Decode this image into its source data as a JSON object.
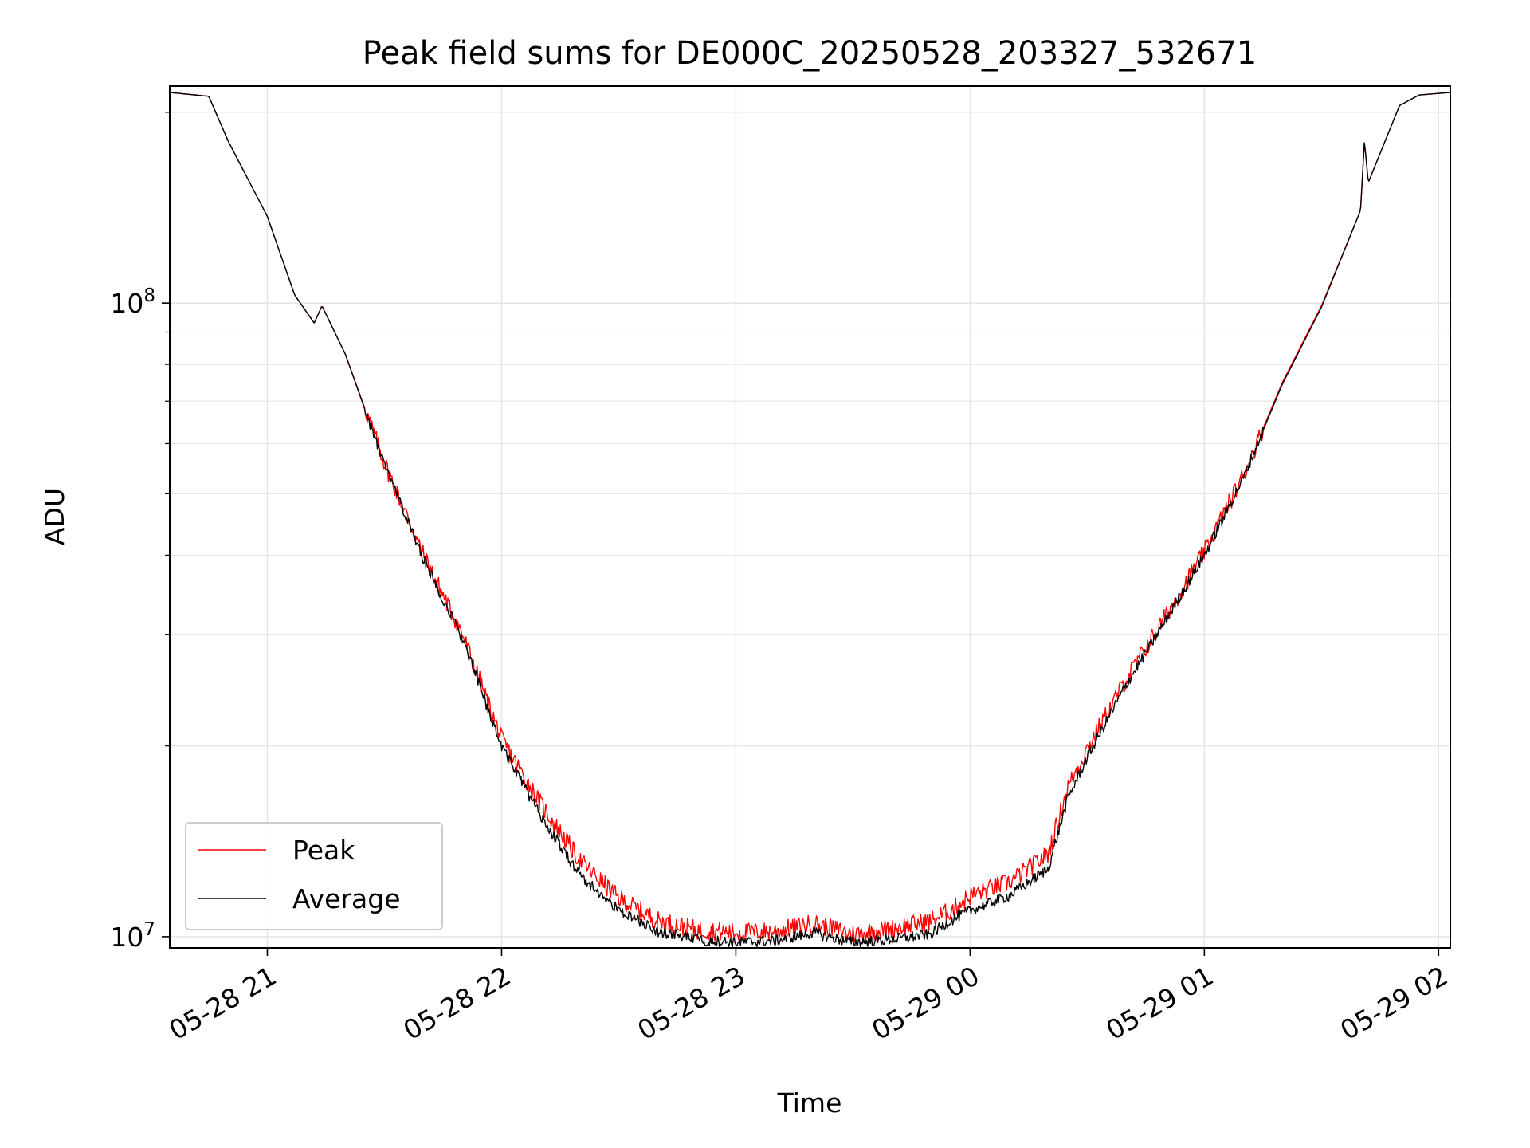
{
  "chart_data": {
    "type": "line",
    "title": "Peak field sums for DE000C_20250528_203327_532671",
    "xlabel": "Time",
    "ylabel": "ADU",
    "yscale": "log",
    "grid": true,
    "legend_position": "lower-left",
    "xlim": [
      "2025-05-28 20:35",
      "2025-05-29 02:03"
    ],
    "ylim": [
      9600000,
      220000000
    ],
    "x_ticks": [
      "05-28 21",
      "05-28 22",
      "05-28 23",
      "05-29 00",
      "05-29 01",
      "05-29 02"
    ],
    "y_tick_labels": [
      {
        "base": "10",
        "exp": "7",
        "value": 10000000
      },
      {
        "base": "10",
        "exp": "8",
        "value": 100000000
      }
    ],
    "x": [
      "2025-05-28 20:35",
      "2025-05-28 20:45",
      "2025-05-28 20:50",
      "2025-05-28 21:00",
      "2025-05-28 21:07",
      "2025-05-28 21:12",
      "2025-05-28 21:14",
      "2025-05-28 21:20",
      "2025-05-28 21:30",
      "2025-05-28 21:40",
      "2025-05-28 21:50",
      "2025-05-28 22:00",
      "2025-05-28 22:10",
      "2025-05-28 22:20",
      "2025-05-28 22:30",
      "2025-05-28 22:40",
      "2025-05-28 22:50",
      "2025-05-28 23:00",
      "2025-05-28 23:10",
      "2025-05-28 23:20",
      "2025-05-28 23:25",
      "2025-05-28 23:30",
      "2025-05-28 23:40",
      "2025-05-28 23:50",
      "2025-05-28 23:55",
      "2025-05-29 00:00",
      "2025-05-29 00:10",
      "2025-05-29 00:20",
      "2025-05-29 00:25",
      "2025-05-29 00:30",
      "2025-05-29 00:40",
      "2025-05-29 00:50",
      "2025-05-29 01:00",
      "2025-05-29 01:10",
      "2025-05-29 01:20",
      "2025-05-29 01:30",
      "2025-05-29 01:40",
      "2025-05-29 01:41",
      "2025-05-29 01:42",
      "2025-05-29 01:50",
      "2025-05-29 01:55",
      "2025-05-29 02:03"
    ],
    "series": [
      {
        "name": "Peak",
        "color": "#ff0000",
        "values": [
          215000000,
          212000000,
          180000000,
          137000000,
          103000000,
          93000000,
          99000000,
          83000000,
          56000000,
          40000000,
          30000000,
          20500000,
          16200000,
          13200000,
          11500000,
          10600000,
          10250000,
          10150000,
          10200000,
          10500000,
          10300000,
          10100000,
          10300000,
          10600000,
          11000000,
          11600000,
          12200000,
          13500000,
          17200000,
          19800000,
          25500000,
          32000000,
          40500000,
          53500000,
          75000000,
          99000000,
          140000000,
          180000000,
          155000000,
          205000000,
          213000000,
          215000000
        ]
      },
      {
        "name": "Average",
        "color": "#000000",
        "values": [
          215000000,
          212000000,
          180000000,
          137000000,
          103000000,
          93000000,
          99000000,
          83000000,
          55500000,
          39500000,
          29500000,
          20000000,
          15500000,
          12500000,
          11000000,
          10200000,
          9900000,
          9800000,
          9850000,
          10150000,
          9950000,
          9800000,
          9900000,
          10100000,
          10600000,
          11000000,
          11600000,
          12800000,
          16500000,
          19200000,
          25000000,
          31500000,
          40000000,
          53000000,
          74500000,
          98500000,
          140000000,
          180000000,
          155000000,
          205000000,
          213000000,
          215000000
        ]
      }
    ]
  }
}
